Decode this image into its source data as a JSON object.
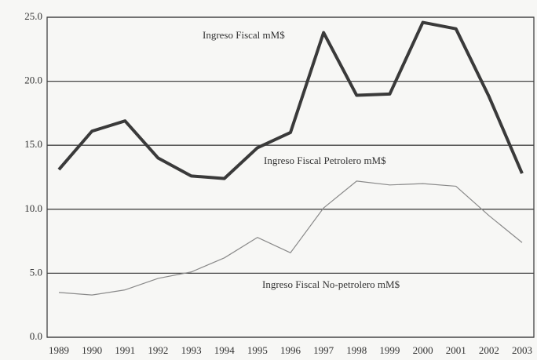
{
  "chart_data": {
    "type": "line",
    "categories": [
      "1989",
      "1990",
      "1991",
      "1992",
      "1993",
      "1994",
      "1995",
      "1996",
      "1997",
      "1998",
      "1999",
      "2000",
      "2001",
      "2002",
      "2003"
    ],
    "series": [
      {
        "name": "Ingreso Fiscal mM$",
        "color": "#3a3a3a",
        "values": [
          13.1,
          16.1,
          16.9,
          14.0,
          12.6,
          12.4,
          14.8,
          16.0,
          23.8,
          18.9,
          19.0,
          24.6,
          24.1,
          18.8,
          12.8
        ]
      },
      {
        "name": "Ingreso Fiscal Petrolero mM$",
        "color": "#8a8a8a",
        "values": [
          3.5,
          3.3,
          3.7,
          4.6,
          5.1,
          6.2,
          7.8,
          6.6,
          10.1,
          12.2,
          11.9,
          12.0,
          11.8,
          9.5,
          7.4
        ]
      }
    ],
    "annotations": [
      "Ingreso Fiscal No-petrolero mM$"
    ],
    "ylim": [
      0,
      25
    ],
    "yticks": [
      {
        "value": 0,
        "label": "0.0"
      },
      {
        "value": 5,
        "label": "5.0"
      },
      {
        "value": 10,
        "label": "10.0"
      },
      {
        "value": 15,
        "label": "15.0"
      },
      {
        "value": 20,
        "label": "20.0"
      },
      {
        "value": 25,
        "label": "25.0"
      }
    ],
    "grid": true
  }
}
